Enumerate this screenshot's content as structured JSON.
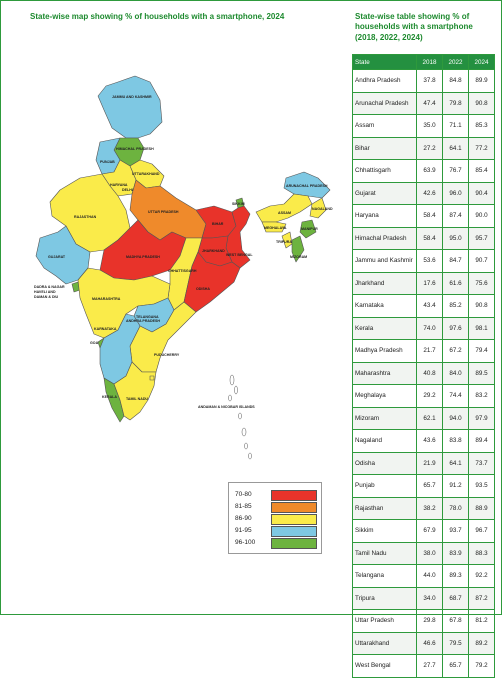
{
  "map": {
    "title": "State-wise map showing % of households with a smartphone, 2024",
    "legend": [
      {
        "label": "70-80",
        "color": "#e8332a"
      },
      {
        "label": "81-85",
        "color": "#ef8a2b"
      },
      {
        "label": "86-90",
        "color": "#faeb4a"
      },
      {
        "label": "91-95",
        "color": "#7ec8e3"
      },
      {
        "label": "96-100",
        "color": "#6db33f"
      }
    ],
    "labels": {
      "jk": "JAMMU AND KASHMIR",
      "hp": "HIMACHAL PRADESH",
      "pb": "PUNJAB",
      "uk": "UTTARAKHAND",
      "hr": "HARYANA",
      "dl": "DELHI",
      "rj": "RAJASTHAN",
      "up": "UTTAR PRADESH",
      "sk": "SIKKIM",
      "ar": "ARUNACHAL PRADESH",
      "as": "ASSAM",
      "nl": "NAGALAND",
      "ml": "MEGHALAYA",
      "mn": "MANIPUR",
      "tr": "TRIPURA",
      "mz": "MIZORAM",
      "br": "BIHAR",
      "jh": "JHARKHAND",
      "wb": "WEST BENGAL",
      "gj": "GUJARAT",
      "mp": "MADHYA PRADESH",
      "cg": "CHHATTISGARH",
      "od": "ODISHA",
      "dd_line1": "DADRA & NAGAR",
      "dd_line2": "HAVELI AND",
      "dd_line3": "DAMAN & DIU",
      "mh": "MAHARASHTRA",
      "tg": "TELANGANA",
      "ap": "ANDHRA PRADESH",
      "ka": "KARNATAKA",
      "goa": "GOA",
      "kl": "KERALA",
      "tn": "TAMIL NADU",
      "py": "PUDUCHERRY",
      "an": "ANDAMAN & NICOBAR ISLANDS"
    }
  },
  "table": {
    "title": "State-wise table showing % of households with a smartphone (2018, 2022, 2024)",
    "headers": [
      "State",
      "2018",
      "2022",
      "2024"
    ],
    "rows": [
      [
        "Andhra Pradesh",
        "37.8",
        "84.8",
        "89.9"
      ],
      [
        "Arunachal Pradesh",
        "47.4",
        "79.8",
        "90.8"
      ],
      [
        "Assam",
        "35.0",
        "71.1",
        "85.3"
      ],
      [
        "Bihar",
        "27.2",
        "64.1",
        "77.2"
      ],
      [
        "Chhattisgarh",
        "63.9",
        "76.7",
        "85.4"
      ],
      [
        "Gujarat",
        "42.6",
        "96.0",
        "90.4"
      ],
      [
        "Haryana",
        "58.4",
        "87.4",
        "90.0"
      ],
      [
        "Himachal Pradesh",
        "58.4",
        "95.0",
        "95.7"
      ],
      [
        "Jammu and Kashmir",
        "53.6",
        "84.7",
        "90.7"
      ],
      [
        "Jharkhand",
        "17.6",
        "61.6",
        "75.6"
      ],
      [
        "Karnataka",
        "43.4",
        "85.2",
        "90.8"
      ],
      [
        "Kerala",
        "74.0",
        "97.6",
        "98.1"
      ],
      [
        "Madhya Pradesh",
        "21.7",
        "67.2",
        "79.4"
      ],
      [
        "Maharashtra",
        "40.8",
        "84.0",
        "89.5"
      ],
      [
        "Meghalaya",
        "29.2",
        "74.4",
        "83.2"
      ],
      [
        "Mizoram",
        "62.1",
        "94.0",
        "97.9"
      ],
      [
        "Nagaland",
        "43.6",
        "83.8",
        "89.4"
      ],
      [
        "Odisha",
        "21.9",
        "64.1",
        "73.7"
      ],
      [
        "Punjab",
        "65.7",
        "91.2",
        "93.5"
      ],
      [
        "Rajasthan",
        "38.2",
        "78.0",
        "88.9"
      ],
      [
        "Sikkim",
        "67.9",
        "93.7",
        "96.7"
      ],
      [
        "Tamil Nadu",
        "38.0",
        "83.9",
        "88.3"
      ],
      [
        "Telangana",
        "44.0",
        "89.3",
        "92.2"
      ],
      [
        "Tripura",
        "34.0",
        "68.7",
        "87.2"
      ],
      [
        "Uttar Pradesh",
        "29.8",
        "67.8",
        "81.2"
      ],
      [
        "Uttarakhand",
        "46.6",
        "79.5",
        "89.2"
      ],
      [
        "West Bengal",
        "27.7",
        "65.7",
        "79.2"
      ]
    ]
  }
}
